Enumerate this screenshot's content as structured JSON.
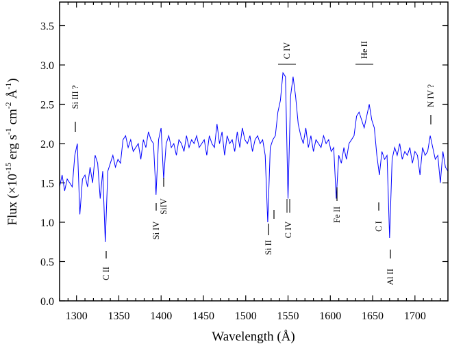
{
  "chart_data": {
    "type": "line",
    "title": "",
    "xlabel": "Wavelength (Å)",
    "ylabel_parts": [
      "Flux (×10",
      "-15",
      " erg s",
      "-1",
      " cm",
      "-2",
      " Å",
      "-1",
      ")"
    ],
    "xlim": [
      1280,
      1739
    ],
    "ylim": [
      0,
      3.8
    ],
    "x_ticks": [
      1300,
      1350,
      1400,
      1450,
      1500,
      1550,
      1600,
      1650,
      1700
    ],
    "y_ticks": [
      "0.0",
      "0.5",
      "1.0",
      "1.5",
      "2.0",
      "2.5",
      "3.0",
      "3.5"
    ],
    "grid": false,
    "line_color": "#0000ff",
    "series": [
      {
        "x": [
          1280,
          1283,
          1286,
          1289,
          1292,
          1295,
          1298,
          1301,
          1304,
          1307,
          1310,
          1313,
          1316,
          1319,
          1322,
          1325,
          1328,
          1331,
          1334,
          1337,
          1340,
          1343,
          1346,
          1349,
          1352,
          1355,
          1358,
          1361,
          1364,
          1367,
          1370,
          1373,
          1376,
          1379,
          1382,
          1385,
          1388,
          1391,
          1394,
          1397,
          1400,
          1403,
          1406,
          1409,
          1412,
          1415,
          1418,
          1421,
          1424,
          1427,
          1430,
          1433,
          1436,
          1439,
          1442,
          1445,
          1448,
          1451,
          1454,
          1457,
          1460,
          1463,
          1466,
          1469,
          1472,
          1475,
          1478,
          1481,
          1484,
          1487,
          1490,
          1493,
          1496,
          1499,
          1502,
          1505,
          1508,
          1511,
          1514,
          1517,
          1520,
          1523,
          1526,
          1529,
          1532,
          1535,
          1538,
          1541,
          1544,
          1547,
          1550,
          1553,
          1556,
          1559,
          1562,
          1565,
          1568,
          1571,
          1574,
          1577,
          1580,
          1583,
          1586,
          1589,
          1592,
          1595,
          1598,
          1601,
          1604,
          1607,
          1610,
          1613,
          1616,
          1619,
          1622,
          1625,
          1628,
          1631,
          1634,
          1637,
          1640,
          1643,
          1646,
          1649,
          1652,
          1655,
          1658,
          1661,
          1664,
          1667,
          1670,
          1673,
          1676,
          1679,
          1682,
          1685,
          1688,
          1691,
          1694,
          1697,
          1700,
          1703,
          1706,
          1709,
          1712,
          1715,
          1718,
          1721,
          1724,
          1727,
          1730,
          1733,
          1736,
          1739
        ],
        "y": [
          1.45,
          1.6,
          1.4,
          1.55,
          1.5,
          1.45,
          1.85,
          2.0,
          1.1,
          1.55,
          1.6,
          1.45,
          1.7,
          1.5,
          1.85,
          1.75,
          1.3,
          1.65,
          0.75,
          1.65,
          1.75,
          1.85,
          1.7,
          1.8,
          1.75,
          2.05,
          2.1,
          1.95,
          2.05,
          1.9,
          1.95,
          2.0,
          1.8,
          2.05,
          1.95,
          2.15,
          2.05,
          2.0,
          1.35,
          2.05,
          2.2,
          1.55,
          2.0,
          2.1,
          1.95,
          2.0,
          1.85,
          2.05,
          2.0,
          1.9,
          2.1,
          1.95,
          2.05,
          2.0,
          2.1,
          1.95,
          2.0,
          2.05,
          1.85,
          2.1,
          2.0,
          1.95,
          2.25,
          2.0,
          2.15,
          1.85,
          2.1,
          2.0,
          2.05,
          1.9,
          2.15,
          1.95,
          2.2,
          2.05,
          2.0,
          2.1,
          1.9,
          2.05,
          2.1,
          2.0,
          2.05,
          1.85,
          1.0,
          1.95,
          2.05,
          2.1,
          2.4,
          2.55,
          2.9,
          2.85,
          1.3,
          2.6,
          2.85,
          2.6,
          2.25,
          2.1,
          2.0,
          2.2,
          1.95,
          2.1,
          1.9,
          2.05,
          2.0,
          1.95,
          2.1,
          2.0,
          2.05,
          1.9,
          1.95,
          1.3,
          1.85,
          1.75,
          1.95,
          1.8,
          2.0,
          2.05,
          2.1,
          2.35,
          2.4,
          2.3,
          2.2,
          2.35,
          2.5,
          2.3,
          2.2,
          1.85,
          1.6,
          1.9,
          1.8,
          1.85,
          0.8,
          1.8,
          1.95,
          1.85,
          2.0,
          1.8,
          1.9,
          1.85,
          1.95,
          1.75,
          1.9,
          1.85,
          1.6,
          1.95,
          1.85,
          1.9,
          2.1,
          1.95,
          1.8,
          1.85,
          1.5,
          1.9,
          1.7,
          1.65
        ]
      }
    ],
    "annotations": [
      {
        "text": "Si III ?"
      },
      {
        "text": "C II"
      },
      {
        "text": "Si IV"
      },
      {
        "text": "SiIV"
      },
      {
        "text": "Si II"
      },
      {
        "text": "C IV"
      },
      {
        "text": "Fe II"
      },
      {
        "text": "C I"
      },
      {
        "text": "Al II"
      },
      {
        "text": "N IV ?"
      },
      {
        "text": "C IV"
      },
      {
        "text": "He II"
      }
    ]
  }
}
